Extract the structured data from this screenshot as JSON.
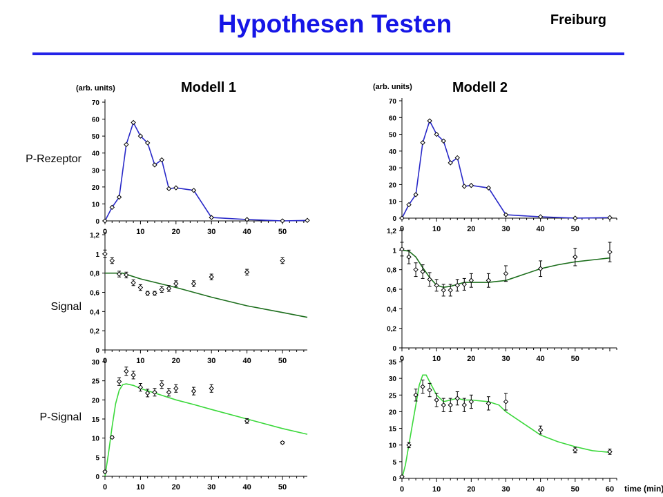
{
  "header": {
    "title": "Hypothesen Testen",
    "org": "Freiburg"
  },
  "colors": {
    "title": "#1515e6",
    "rule": "#2424e8",
    "receptor": "#2828c8",
    "signal_fit": "#1c6e1c",
    "psignal_fit": "#3ad83a"
  },
  "rows": [
    "P-Rezeptor",
    "Signal",
    "P-Signal"
  ],
  "models": [
    "Modell 1",
    "Modell 2"
  ],
  "units_label": "(arb. units)",
  "time_label": "time (min)",
  "chart_data": [
    {
      "type": "line",
      "title": "Modell 1",
      "row": "P-Rezeptor",
      "ylabel": "(arb. units)",
      "ylim": [
        0,
        70
      ],
      "xlim": [
        0,
        57
      ],
      "yticks": [
        0,
        10,
        20,
        30,
        40,
        50,
        60,
        70
      ],
      "ytick_labels": [
        "0",
        "10",
        "20",
        "30",
        "40",
        "50",
        "60",
        "70"
      ],
      "series": [
        {
          "values": [
            [
              0,
              0
            ],
            [
              2,
              8
            ],
            [
              4,
              14
            ],
            [
              6,
              45
            ],
            [
              8,
              58
            ],
            [
              10,
              50
            ],
            [
              12,
              46
            ],
            [
              14,
              33
            ],
            [
              16,
              36
            ],
            [
              18,
              19
            ],
            [
              20,
              19.5
            ],
            [
              25,
              18
            ],
            [
              30,
              2
            ],
            [
              40,
              0.8
            ],
            [
              50,
              0
            ],
            [
              57,
              0.3
            ]
          ]
        }
      ]
    },
    {
      "type": "line",
      "title": "Modell 2",
      "row": "P-Rezeptor",
      "ylabel": "(arb. units)",
      "ylim": [
        0,
        70
      ],
      "xlim": [
        0,
        62
      ],
      "yticks": [
        0,
        10,
        20,
        30,
        40,
        50,
        60,
        70
      ],
      "ytick_labels": [
        "0",
        "10",
        "20",
        "30",
        "40",
        "50",
        "60",
        "70"
      ],
      "series": [
        {
          "values": [
            [
              0,
              0
            ],
            [
              2,
              8
            ],
            [
              4,
              14
            ],
            [
              6,
              45
            ],
            [
              8,
              58
            ],
            [
              10,
              50
            ],
            [
              12,
              46
            ],
            [
              14,
              33
            ],
            [
              16,
              36
            ],
            [
              18,
              19
            ],
            [
              20,
              19.5
            ],
            [
              25,
              18
            ],
            [
              30,
              2
            ],
            [
              40,
              0.8
            ],
            [
              50,
              0
            ],
            [
              60,
              0.3
            ]
          ]
        }
      ]
    },
    {
      "type": "scatter",
      "row": "Signal",
      "ylim": [
        0,
        1.2
      ],
      "xlim": [
        0,
        57
      ],
      "yticks": [
        0,
        0.2,
        0.4,
        0.6,
        0.8,
        1,
        1.2
      ],
      "ytick_labels": [
        "0",
        "0,2",
        "0,4",
        "0,6",
        "0,8",
        "1",
        "1,2"
      ],
      "points": [
        [
          0,
          1.0,
          0.04
        ],
        [
          2,
          0.93,
          0.03
        ],
        [
          4,
          0.79,
          0.03
        ],
        [
          6,
          0.78,
          0.03
        ],
        [
          8,
          0.7,
          0.03
        ],
        [
          10,
          0.65,
          0.03
        ],
        [
          12,
          0.59,
          0.02
        ],
        [
          14,
          0.59,
          0.02
        ],
        [
          16,
          0.63,
          0.03
        ],
        [
          18,
          0.64,
          0.03
        ],
        [
          20,
          0.69,
          0.03
        ],
        [
          25,
          0.69,
          0.03
        ],
        [
          30,
          0.76,
          0.03
        ],
        [
          40,
          0.81,
          0.03
        ],
        [
          50,
          0.93,
          0.03
        ]
      ],
      "fit": [
        [
          0,
          0.8
        ],
        [
          5,
          0.8
        ],
        [
          10,
          0.74
        ],
        [
          20,
          0.65
        ],
        [
          30,
          0.55
        ],
        [
          40,
          0.46
        ],
        [
          50,
          0.39
        ],
        [
          57,
          0.34
        ]
      ]
    },
    {
      "type": "scatter",
      "row": "Signal",
      "ylim": [
        0,
        1.2
      ],
      "xlim": [
        0,
        62
      ],
      "yticks": [
        0,
        0.2,
        0.4,
        0.6,
        0.8,
        1,
        1.2
      ],
      "ytick_labels": [
        "0",
        "0,2",
        "0,4",
        "0,6",
        "0,8",
        "1",
        "1,2"
      ],
      "points": [
        [
          0,
          1.01,
          0.07
        ],
        [
          2,
          0.93,
          0.07
        ],
        [
          4,
          0.8,
          0.07
        ],
        [
          6,
          0.78,
          0.07
        ],
        [
          8,
          0.7,
          0.07
        ],
        [
          10,
          0.64,
          0.06
        ],
        [
          12,
          0.59,
          0.06
        ],
        [
          14,
          0.59,
          0.06
        ],
        [
          16,
          0.64,
          0.06
        ],
        [
          18,
          0.65,
          0.06
        ],
        [
          20,
          0.69,
          0.07
        ],
        [
          25,
          0.69,
          0.07
        ],
        [
          30,
          0.76,
          0.08
        ],
        [
          40,
          0.81,
          0.08
        ],
        [
          50,
          0.93,
          0.09
        ],
        [
          60,
          0.98,
          0.1
        ]
      ],
      "fit": [
        [
          0,
          1.0
        ],
        [
          2,
          0.99
        ],
        [
          4,
          0.93
        ],
        [
          6,
          0.82
        ],
        [
          8,
          0.72
        ],
        [
          10,
          0.64
        ],
        [
          12,
          0.62
        ],
        [
          14,
          0.63
        ],
        [
          16,
          0.65
        ],
        [
          18,
          0.67
        ],
        [
          20,
          0.67
        ],
        [
          25,
          0.67
        ],
        [
          30,
          0.69
        ],
        [
          35,
          0.75
        ],
        [
          40,
          0.81
        ],
        [
          45,
          0.85
        ],
        [
          50,
          0.88
        ],
        [
          55,
          0.9
        ],
        [
          60,
          0.92
        ]
      ]
    },
    {
      "type": "scatter",
      "row": "P-Signal",
      "ylim": [
        0,
        30
      ],
      "xlim": [
        0,
        57
      ],
      "yticks": [
        0,
        5,
        10,
        15,
        20,
        25,
        30
      ],
      "ytick_labels": [
        "0",
        "5",
        "10",
        "15",
        "20",
        "25",
        "30"
      ],
      "points": [
        [
          0,
          1.2,
          0.3
        ],
        [
          2,
          10.2,
          0.3
        ],
        [
          4,
          24.8,
          1.0
        ],
        [
          6,
          27.5,
          1.1
        ],
        [
          8,
          26.5,
          1.0
        ],
        [
          10,
          23.3,
          1.0
        ],
        [
          12,
          21.8,
          1.0
        ],
        [
          14,
          22,
          1.0
        ],
        [
          16,
          24,
          1.0
        ],
        [
          18,
          22,
          1.0
        ],
        [
          20,
          23,
          1.0
        ],
        [
          25,
          22.3,
          1.0
        ],
        [
          30,
          23,
          1.0
        ],
        [
          40,
          14.5,
          0.6
        ],
        [
          50,
          8.8,
          0.3
        ]
      ],
      "fit": [
        [
          0,
          0
        ],
        [
          1,
          6
        ],
        [
          2,
          13
        ],
        [
          3,
          19
        ],
        [
          4,
          22.5
        ],
        [
          5,
          24
        ],
        [
          6,
          24.2
        ],
        [
          8,
          23.8
        ],
        [
          10,
          23
        ],
        [
          15,
          21.5
        ],
        [
          20,
          20
        ],
        [
          25,
          18.8
        ],
        [
          30,
          17.5
        ],
        [
          40,
          15
        ],
        [
          50,
          12.5
        ],
        [
          57,
          11
        ]
      ]
    },
    {
      "type": "scatter",
      "row": "P-Signal",
      "ylim": [
        0,
        35
      ],
      "xlim": [
        0,
        62
      ],
      "yticks": [
        0,
        5,
        10,
        15,
        20,
        25,
        30,
        35
      ],
      "ytick_labels": [
        "0",
        "5",
        "10",
        "15",
        "20",
        "25",
        "30",
        "35"
      ],
      "xticks": [
        0,
        10,
        20,
        30,
        40,
        50,
        60
      ],
      "xtick_labels": [
        "0",
        "10",
        "20",
        "30",
        "40",
        "50",
        "60"
      ],
      "points": [
        [
          0,
          0.5,
          0.3
        ],
        [
          2,
          10,
          0.8
        ],
        [
          4,
          25,
          1.8
        ],
        [
          6,
          27.5,
          2.0
        ],
        [
          8,
          26.5,
          2.0
        ],
        [
          10,
          23.5,
          2.0
        ],
        [
          12,
          22,
          2.0
        ],
        [
          14,
          22,
          2.0
        ],
        [
          16,
          24,
          2.0
        ],
        [
          18,
          22,
          2.0
        ],
        [
          20,
          23,
          2.0
        ],
        [
          25,
          22.5,
          2.0
        ],
        [
          30,
          23,
          2.5
        ],
        [
          40,
          14.5,
          1.2
        ],
        [
          50,
          8.5,
          0.8
        ],
        [
          60,
          8,
          0.8
        ]
      ],
      "fit": [
        [
          0,
          0
        ],
        [
          1,
          4
        ],
        [
          2,
          10
        ],
        [
          3,
          16
        ],
        [
          4,
          22
        ],
        [
          5,
          28
        ],
        [
          6,
          31
        ],
        [
          7,
          31
        ],
        [
          8,
          29
        ],
        [
          10,
          25
        ],
        [
          12,
          23
        ],
        [
          14,
          23.5
        ],
        [
          16,
          24
        ],
        [
          18,
          23.5
        ],
        [
          20,
          23.5
        ],
        [
          25,
          23
        ],
        [
          28,
          22
        ],
        [
          30,
          20
        ],
        [
          35,
          16.5
        ],
        [
          40,
          13
        ],
        [
          45,
          11
        ],
        [
          50,
          9.5
        ],
        [
          55,
          8.3
        ],
        [
          60,
          7.8
        ]
      ]
    }
  ]
}
